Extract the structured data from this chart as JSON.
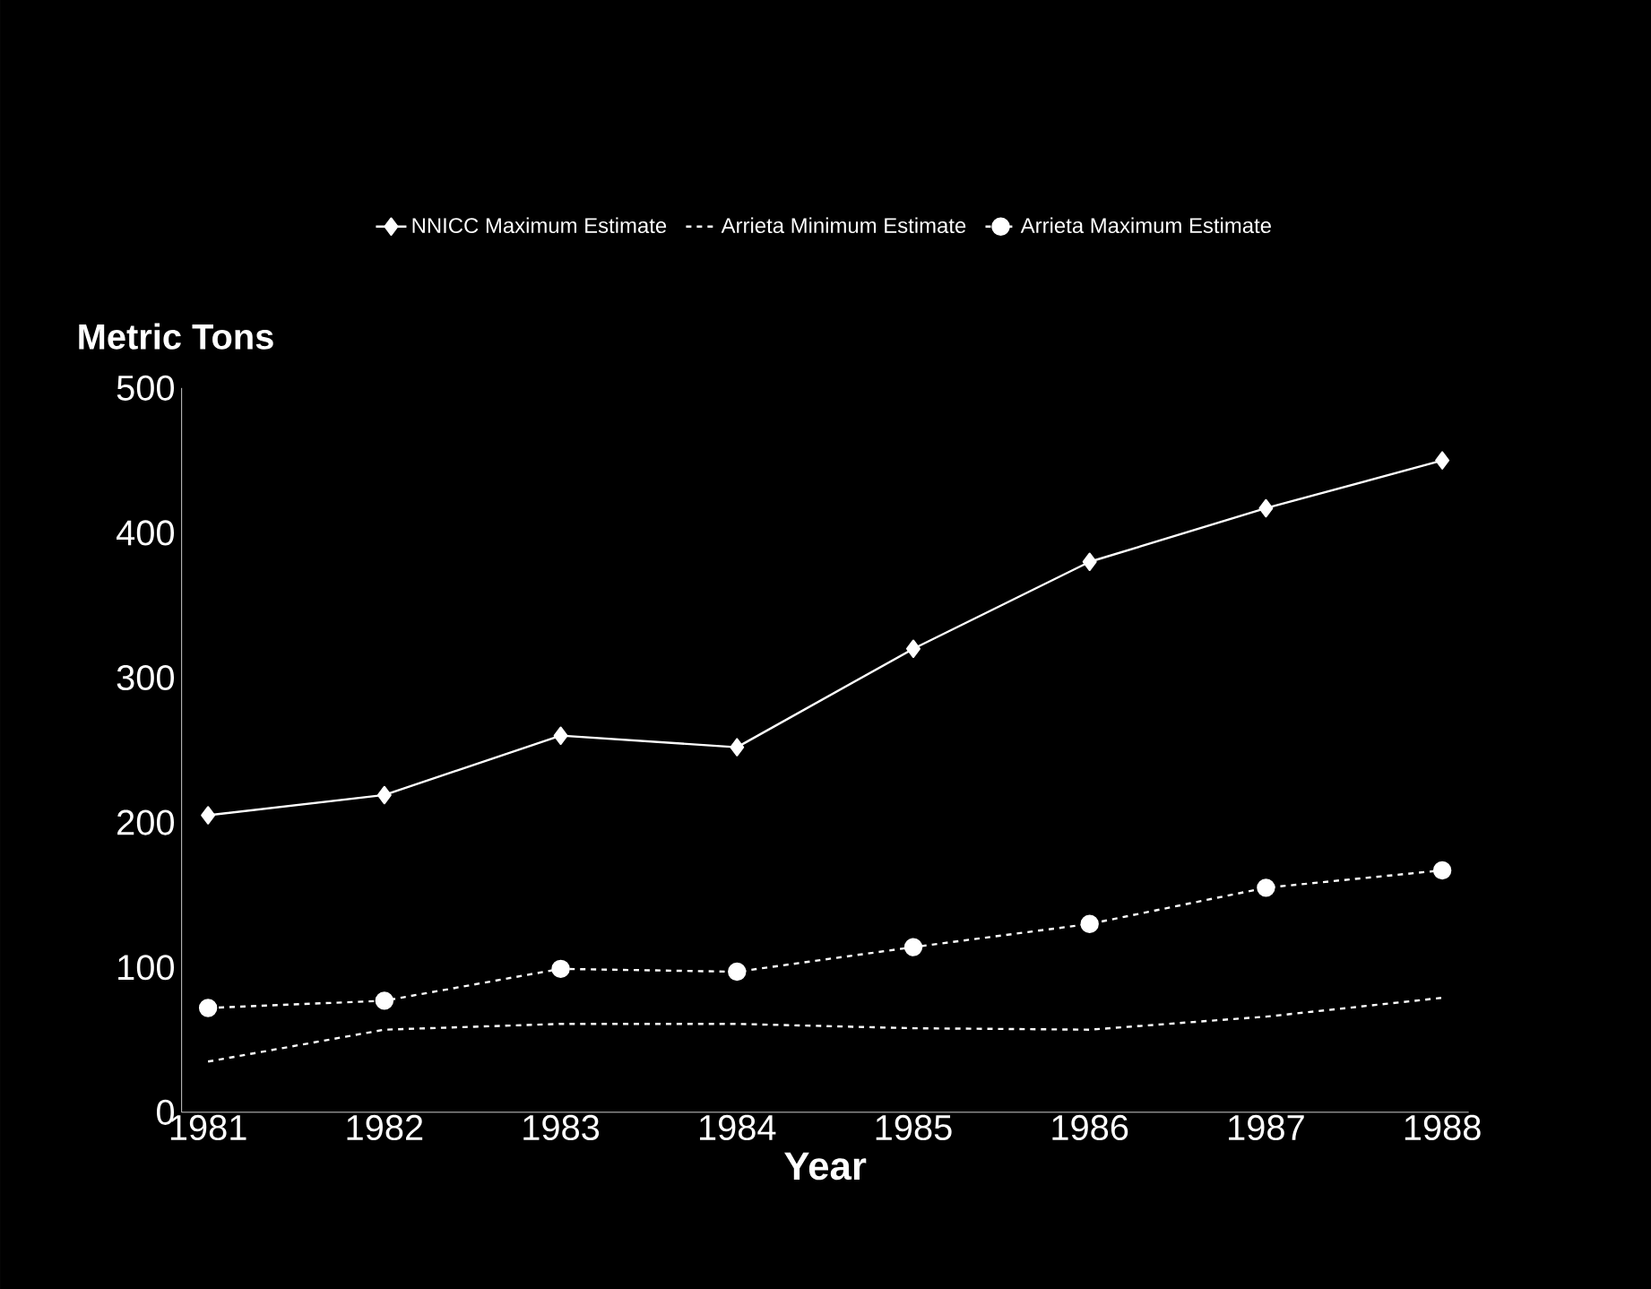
{
  "chart_data": {
    "type": "line",
    "xlabel": "Year",
    "ylabel": "Metric Tons",
    "categories": [
      "1981",
      "1982",
      "1983",
      "1984",
      "1985",
      "1986",
      "1987",
      "1988"
    ],
    "series": [
      {
        "name": "NNICC Maximum Estimate",
        "color": "#ffffff",
        "marker": "diamond",
        "line_style": "solid",
        "values": [
          205,
          219,
          260,
          252,
          320,
          380,
          417,
          450
        ]
      },
      {
        "name": "Arrieta Minimum Estimate",
        "color": "#ffffff",
        "marker": "none",
        "line_style": "dashed",
        "values": [
          35,
          57,
          61,
          61,
          58,
          57,
          66,
          79
        ]
      },
      {
        "name": "Arrieta Maximum Estimate",
        "color": "#ffffff",
        "marker": "circle",
        "line_style": "dashed",
        "values": [
          72,
          77,
          99,
          97,
          114,
          130,
          155,
          167
        ]
      }
    ],
    "ylim": [
      0,
      500
    ],
    "yticks": [
      0,
      100,
      200,
      300,
      400,
      500
    ],
    "grid": false,
    "legend": "top"
  }
}
